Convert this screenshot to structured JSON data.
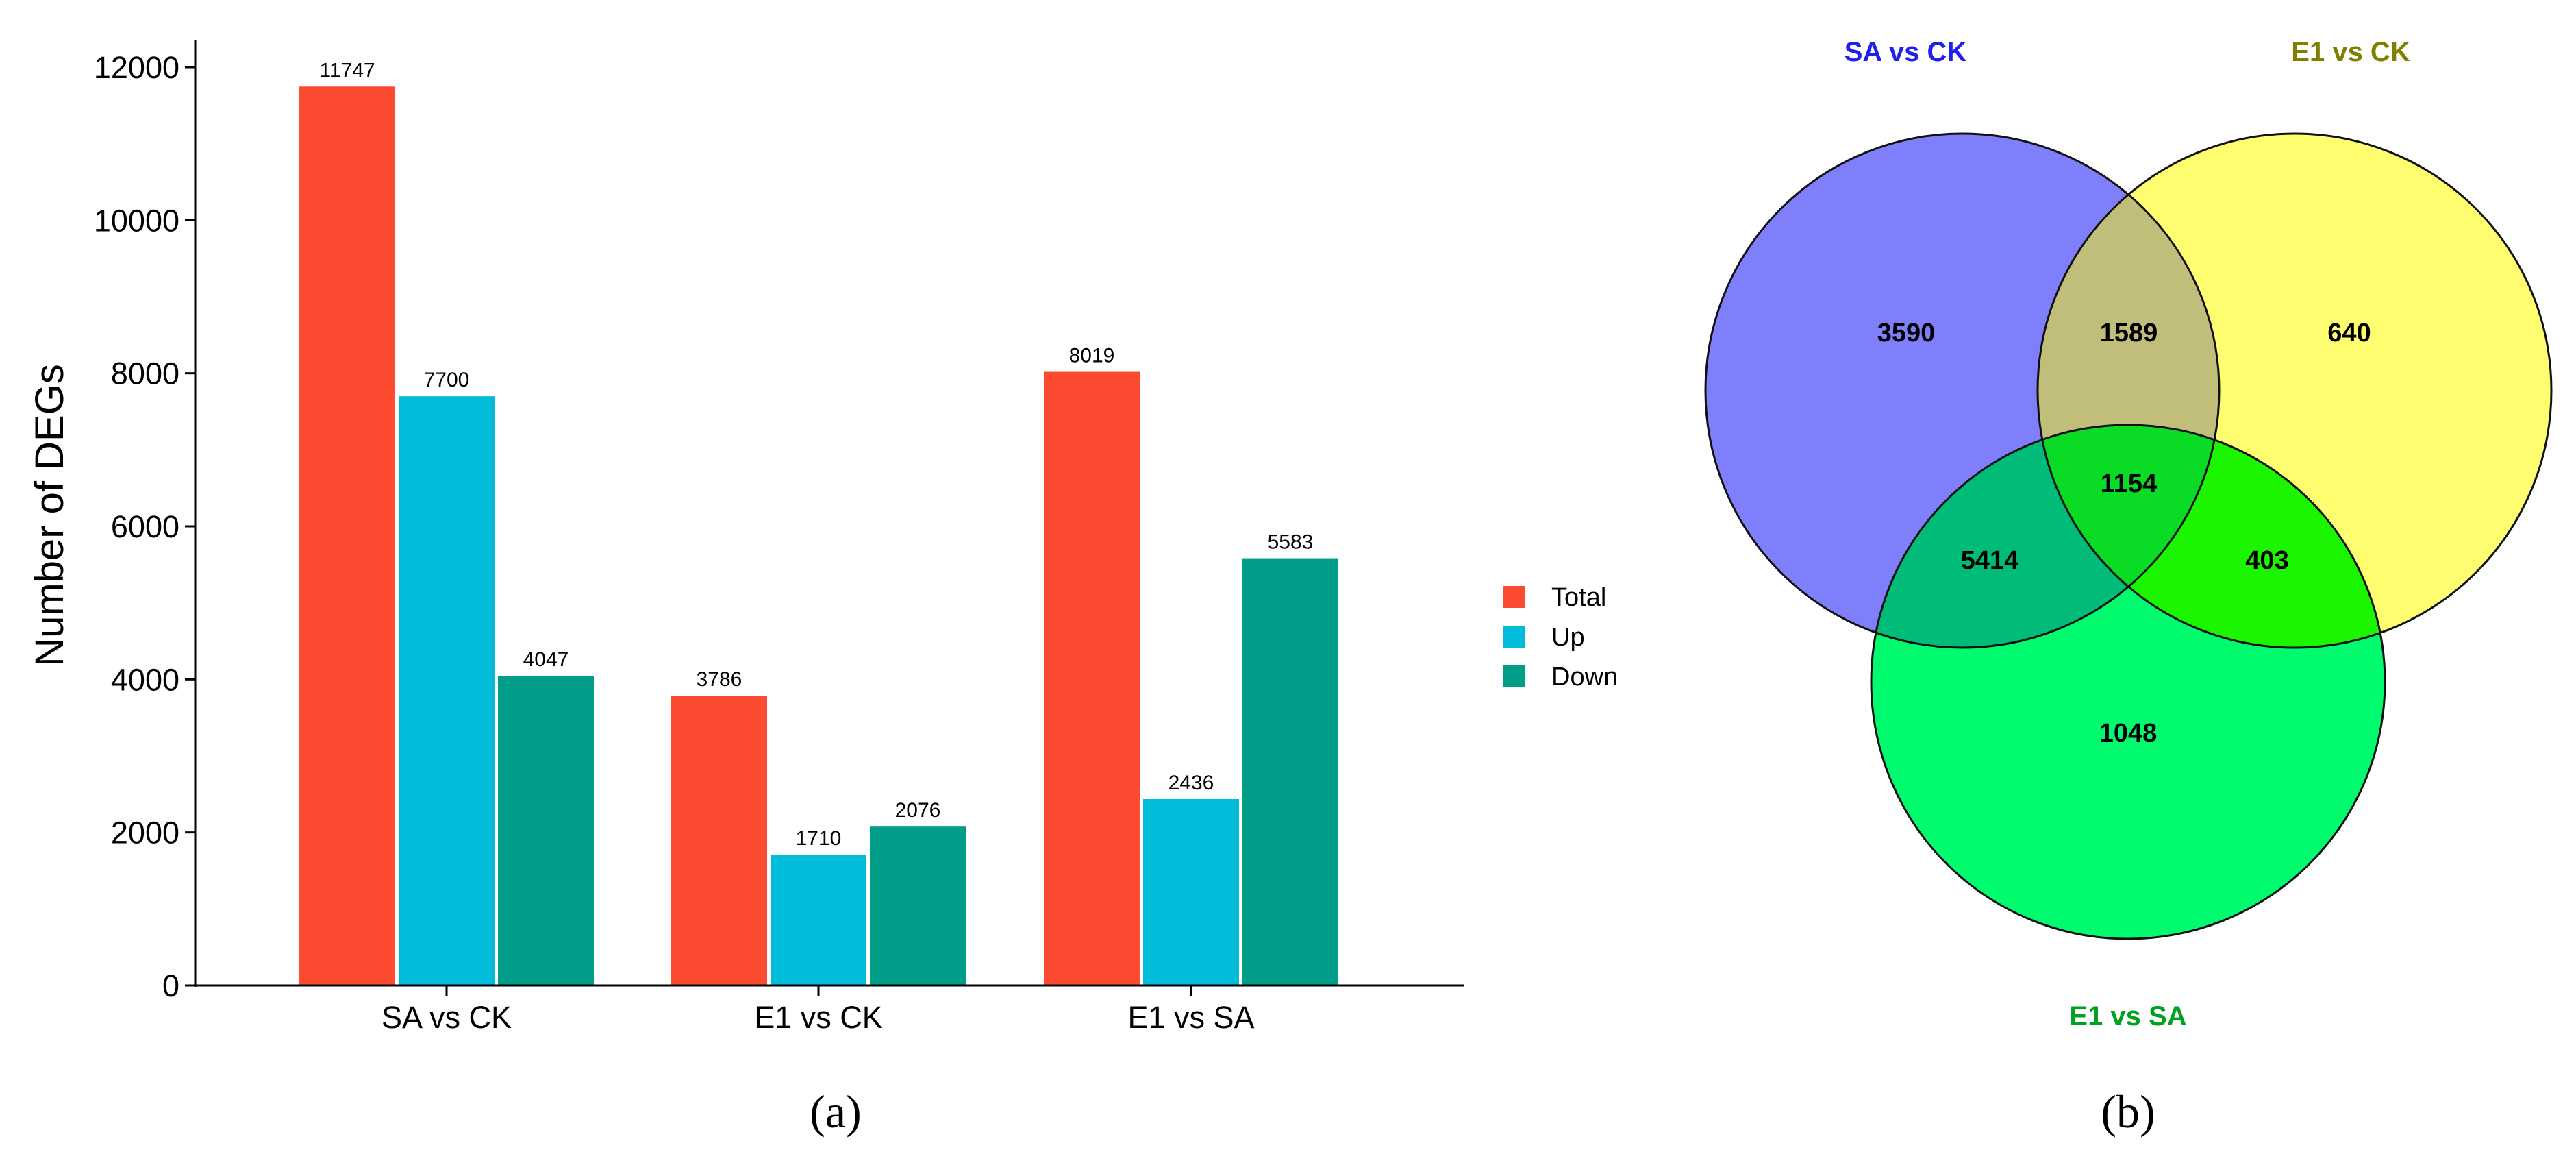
{
  "chart_data": [
    {
      "type": "bar",
      "categories": [
        "SA vs CK",
        "E1 vs CK",
        "E1 vs SA"
      ],
      "series": [
        {
          "name": "Total",
          "color": "#fc4b30",
          "values": [
            11747,
            3786,
            8019
          ]
        },
        {
          "name": "Up",
          "color": "#00bcd8",
          "values": [
            7700,
            1710,
            2436
          ]
        },
        {
          "name": "Down",
          "color": "#009e88",
          "values": [
            4047,
            2076,
            5583
          ]
        }
      ],
      "title": "",
      "xlabel": "",
      "ylabel": "Number of DEGs",
      "ylim": [
        0,
        12400
      ],
      "yticks": [
        0,
        2000,
        4000,
        6000,
        8000,
        10000,
        12000
      ],
      "ytick_labels": [
        "0",
        "2000",
        "4000",
        "6000",
        "8000",
        "10000",
        "12000"
      ],
      "legend_position": "right",
      "grid": false,
      "panel_label": "(a)"
    },
    {
      "type": "venn",
      "sets": [
        {
          "name": "SA vs CK",
          "color": "#7f7ffc",
          "label_color": "#1f1fee"
        },
        {
          "name": "E1 vs CK",
          "color": "#fefe70",
          "label_color": "#7f7f00"
        },
        {
          "name": "E1 vs SA",
          "color": "#00fb6f",
          "label_color": "#00a020"
        }
      ],
      "regions": {
        "SA_only": 3590,
        "SA_E1CK": 1589,
        "E1CK_only": 640,
        "all_three": 1154,
        "SA_E1SA": 5414,
        "E1CK_E1SA": 403,
        "E1SA_only": 1048
      },
      "region_colors": {
        "SA_E1CK": "#c1bd7b",
        "all_three": "#0adc26",
        "SA_E1SA": "#00bc78",
        "E1CK_E1SA": "#1cf500"
      },
      "panel_label": "(b)"
    }
  ]
}
